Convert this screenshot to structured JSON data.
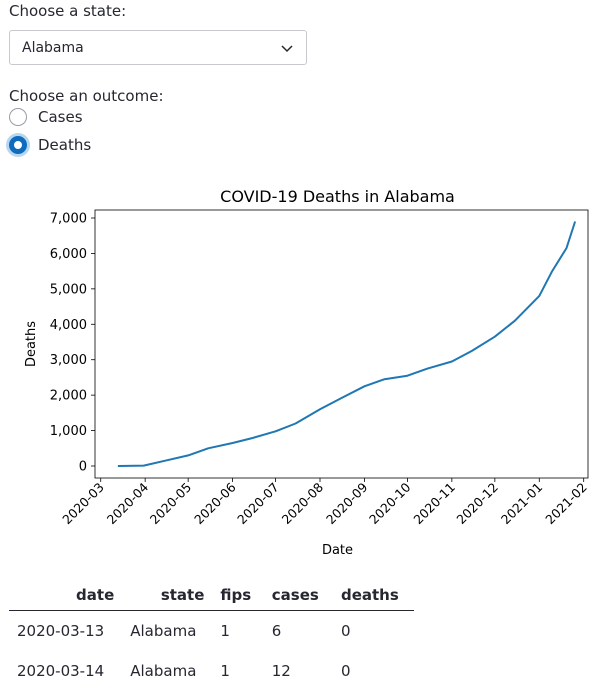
{
  "state_select": {
    "label": "Choose a state:",
    "value": "Alabama"
  },
  "outcome": {
    "label": "Choose an outcome:",
    "options": [
      {
        "label": "Cases",
        "checked": false
      },
      {
        "label": "Deaths",
        "checked": true
      }
    ]
  },
  "chart_data": {
    "type": "line",
    "title": "COVID-19 Deaths in Alabama",
    "xlabel": "Date",
    "ylabel": "Deaths",
    "ylim": [
      0,
      7000
    ],
    "y_ticks": [
      "0",
      "1,000",
      "2,000",
      "3,000",
      "4,000",
      "5,000",
      "6,000",
      "7,000"
    ],
    "x_ticks": [
      "2020-03",
      "2020-04",
      "2020-05",
      "2020-06",
      "2020-07",
      "2020-08",
      "2020-09",
      "2020-10",
      "2020-11",
      "2020-12",
      "2021-01",
      "2021-02"
    ],
    "series": [
      {
        "color": "#1f77b4",
        "x": [
          "2020-03-13",
          "2020-03-31",
          "2020-04-15",
          "2020-05-01",
          "2020-05-15",
          "2020-06-01",
          "2020-06-15",
          "2020-07-01",
          "2020-07-15",
          "2020-08-01",
          "2020-08-15",
          "2020-09-01",
          "2020-09-15",
          "2020-10-01",
          "2020-10-15",
          "2020-11-01",
          "2020-11-15",
          "2020-12-01",
          "2020-12-15",
          "2021-01-01",
          "2021-01-10",
          "2021-01-20",
          "2021-01-26"
        ],
        "y": [
          0,
          10,
          150,
          300,
          500,
          650,
          790,
          980,
          1200,
          1600,
          1900,
          2250,
          2450,
          2550,
          2750,
          2950,
          3250,
          3650,
          4100,
          4800,
          5500,
          6150,
          6900
        ]
      }
    ]
  },
  "table": {
    "columns": [
      "date",
      "state",
      "fips",
      "cases",
      "deaths"
    ],
    "rows": [
      [
        "2020-03-13",
        "Alabama",
        "1",
        "6",
        "0"
      ],
      [
        "2020-03-14",
        "Alabama",
        "1",
        "12",
        "0"
      ]
    ]
  }
}
